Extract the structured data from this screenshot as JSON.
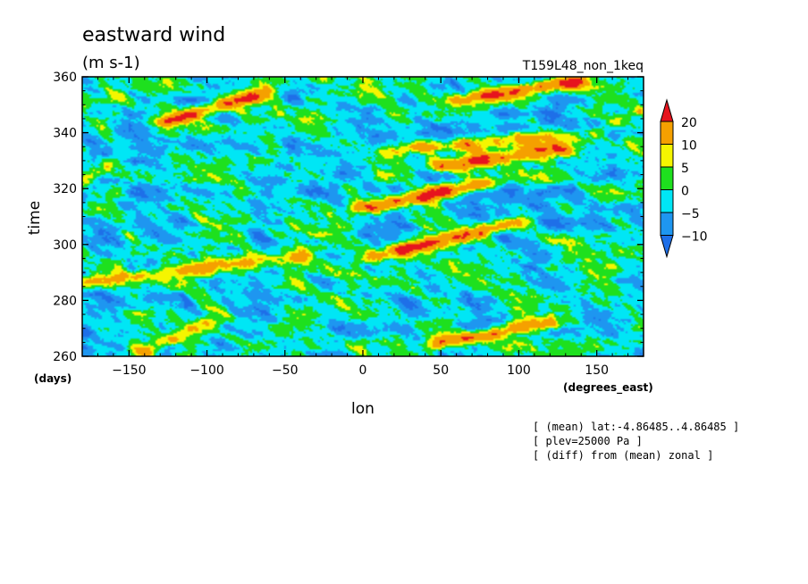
{
  "chart_data": {
    "type": "heatmap",
    "title": "eastward wind",
    "units": "(m s-1)",
    "run_label": "T159L48_non_1keq",
    "xlabel": "lon",
    "x_units": "(degrees_east)",
    "ylabel": "time",
    "y_units": "(days)",
    "xlim": [
      -180,
      180
    ],
    "ylim": [
      260,
      360
    ],
    "x_ticks": [
      -150,
      -100,
      -50,
      0,
      50,
      100,
      150
    ],
    "y_ticks": [
      260,
      280,
      300,
      320,
      340,
      360
    ],
    "colorbar": {
      "levels": [
        -10,
        -5,
        0,
        5,
        10,
        20
      ],
      "colors": [
        "#1e6fe8",
        "#1e96f0",
        "#00e6f5",
        "#1ee01e",
        "#f5f500",
        "#f5a000",
        "#e6141e"
      ]
    },
    "features": [
      {
        "lon_start": -125,
        "lon_end": -65,
        "time_start": 344,
        "time_end": 354,
        "peak": 22
      },
      {
        "lon_start": 65,
        "lon_end": 135,
        "time_start": 352,
        "time_end": 358,
        "peak": 21
      },
      {
        "lon_start": 50,
        "lon_end": 125,
        "time_start": 328,
        "time_end": 334,
        "peak": 20
      },
      {
        "lon_start": 20,
        "lon_end": 130,
        "time_start": 334,
        "time_end": 339,
        "peak": 14
      },
      {
        "lon_start": 0,
        "lon_end": 80,
        "time_start": 313,
        "time_end": 322,
        "peak": 20
      },
      {
        "lon_start": 10,
        "lon_end": 100,
        "time_start": 296,
        "time_end": 308,
        "peak": 21
      },
      {
        "lon_start": -180,
        "lon_end": -40,
        "time_start": 286,
        "time_end": 296,
        "peak": 13
      },
      {
        "lon_start": 50,
        "lon_end": 120,
        "time_start": 265,
        "time_end": 272,
        "peak": 22
      },
      {
        "lon_start": -180,
        "lon_end": -160,
        "time_start": 322,
        "time_end": 330,
        "peak": 12
      },
      {
        "lon_start": 150,
        "lon_end": 180,
        "time_start": 340,
        "time_end": 348,
        "peak": 10
      },
      {
        "lon_start": -140,
        "lon_end": -100,
        "time_start": 262,
        "time_end": 272,
        "peak": 11
      }
    ]
  },
  "notes": [
    "[ (mean) lat:-4.86485..4.86485 ]",
    "[ plev=25000 Pa ]",
    "[ (diff) from (mean) zonal ]"
  ]
}
